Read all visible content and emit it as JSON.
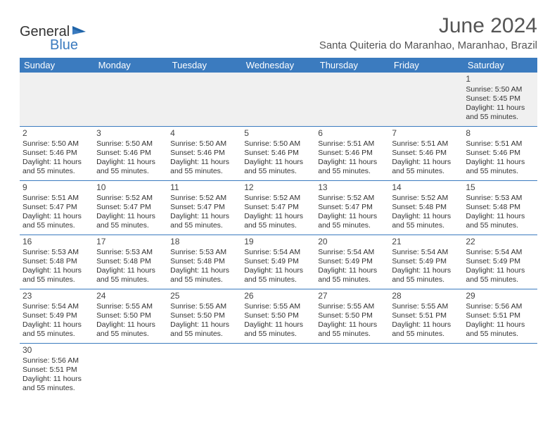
{
  "logo": {
    "text1": "General",
    "text2": "Blue"
  },
  "title": "June 2024",
  "location": "Santa Quiteria do Maranhao, Maranhao, Brazil",
  "dayHeaders": [
    "Sunday",
    "Monday",
    "Tuesday",
    "Wednesday",
    "Thursday",
    "Friday",
    "Saturday"
  ],
  "colors": {
    "header_bg": "#3b7bbf",
    "header_fg": "#ffffff",
    "border": "#3b7bbf",
    "firstrow_bg": "#f0f0f0",
    "text": "#333333",
    "title": "#555555"
  },
  "weeks": [
    [
      null,
      null,
      null,
      null,
      null,
      null,
      {
        "n": "1",
        "sr": "Sunrise: 5:50 AM",
        "ss": "Sunset: 5:45 PM",
        "d1": "Daylight: 11 hours",
        "d2": "and 55 minutes."
      }
    ],
    [
      {
        "n": "2",
        "sr": "Sunrise: 5:50 AM",
        "ss": "Sunset: 5:46 PM",
        "d1": "Daylight: 11 hours",
        "d2": "and 55 minutes."
      },
      {
        "n": "3",
        "sr": "Sunrise: 5:50 AM",
        "ss": "Sunset: 5:46 PM",
        "d1": "Daylight: 11 hours",
        "d2": "and 55 minutes."
      },
      {
        "n": "4",
        "sr": "Sunrise: 5:50 AM",
        "ss": "Sunset: 5:46 PM",
        "d1": "Daylight: 11 hours",
        "d2": "and 55 minutes."
      },
      {
        "n": "5",
        "sr": "Sunrise: 5:50 AM",
        "ss": "Sunset: 5:46 PM",
        "d1": "Daylight: 11 hours",
        "d2": "and 55 minutes."
      },
      {
        "n": "6",
        "sr": "Sunrise: 5:51 AM",
        "ss": "Sunset: 5:46 PM",
        "d1": "Daylight: 11 hours",
        "d2": "and 55 minutes."
      },
      {
        "n": "7",
        "sr": "Sunrise: 5:51 AM",
        "ss": "Sunset: 5:46 PM",
        "d1": "Daylight: 11 hours",
        "d2": "and 55 minutes."
      },
      {
        "n": "8",
        "sr": "Sunrise: 5:51 AM",
        "ss": "Sunset: 5:46 PM",
        "d1": "Daylight: 11 hours",
        "d2": "and 55 minutes."
      }
    ],
    [
      {
        "n": "9",
        "sr": "Sunrise: 5:51 AM",
        "ss": "Sunset: 5:47 PM",
        "d1": "Daylight: 11 hours",
        "d2": "and 55 minutes."
      },
      {
        "n": "10",
        "sr": "Sunrise: 5:52 AM",
        "ss": "Sunset: 5:47 PM",
        "d1": "Daylight: 11 hours",
        "d2": "and 55 minutes."
      },
      {
        "n": "11",
        "sr": "Sunrise: 5:52 AM",
        "ss": "Sunset: 5:47 PM",
        "d1": "Daylight: 11 hours",
        "d2": "and 55 minutes."
      },
      {
        "n": "12",
        "sr": "Sunrise: 5:52 AM",
        "ss": "Sunset: 5:47 PM",
        "d1": "Daylight: 11 hours",
        "d2": "and 55 minutes."
      },
      {
        "n": "13",
        "sr": "Sunrise: 5:52 AM",
        "ss": "Sunset: 5:47 PM",
        "d1": "Daylight: 11 hours",
        "d2": "and 55 minutes."
      },
      {
        "n": "14",
        "sr": "Sunrise: 5:52 AM",
        "ss": "Sunset: 5:48 PM",
        "d1": "Daylight: 11 hours",
        "d2": "and 55 minutes."
      },
      {
        "n": "15",
        "sr": "Sunrise: 5:53 AM",
        "ss": "Sunset: 5:48 PM",
        "d1": "Daylight: 11 hours",
        "d2": "and 55 minutes."
      }
    ],
    [
      {
        "n": "16",
        "sr": "Sunrise: 5:53 AM",
        "ss": "Sunset: 5:48 PM",
        "d1": "Daylight: 11 hours",
        "d2": "and 55 minutes."
      },
      {
        "n": "17",
        "sr": "Sunrise: 5:53 AM",
        "ss": "Sunset: 5:48 PM",
        "d1": "Daylight: 11 hours",
        "d2": "and 55 minutes."
      },
      {
        "n": "18",
        "sr": "Sunrise: 5:53 AM",
        "ss": "Sunset: 5:48 PM",
        "d1": "Daylight: 11 hours",
        "d2": "and 55 minutes."
      },
      {
        "n": "19",
        "sr": "Sunrise: 5:54 AM",
        "ss": "Sunset: 5:49 PM",
        "d1": "Daylight: 11 hours",
        "d2": "and 55 minutes."
      },
      {
        "n": "20",
        "sr": "Sunrise: 5:54 AM",
        "ss": "Sunset: 5:49 PM",
        "d1": "Daylight: 11 hours",
        "d2": "and 55 minutes."
      },
      {
        "n": "21",
        "sr": "Sunrise: 5:54 AM",
        "ss": "Sunset: 5:49 PM",
        "d1": "Daylight: 11 hours",
        "d2": "and 55 minutes."
      },
      {
        "n": "22",
        "sr": "Sunrise: 5:54 AM",
        "ss": "Sunset: 5:49 PM",
        "d1": "Daylight: 11 hours",
        "d2": "and 55 minutes."
      }
    ],
    [
      {
        "n": "23",
        "sr": "Sunrise: 5:54 AM",
        "ss": "Sunset: 5:49 PM",
        "d1": "Daylight: 11 hours",
        "d2": "and 55 minutes."
      },
      {
        "n": "24",
        "sr": "Sunrise: 5:55 AM",
        "ss": "Sunset: 5:50 PM",
        "d1": "Daylight: 11 hours",
        "d2": "and 55 minutes."
      },
      {
        "n": "25",
        "sr": "Sunrise: 5:55 AM",
        "ss": "Sunset: 5:50 PM",
        "d1": "Daylight: 11 hours",
        "d2": "and 55 minutes."
      },
      {
        "n": "26",
        "sr": "Sunrise: 5:55 AM",
        "ss": "Sunset: 5:50 PM",
        "d1": "Daylight: 11 hours",
        "d2": "and 55 minutes."
      },
      {
        "n": "27",
        "sr": "Sunrise: 5:55 AM",
        "ss": "Sunset: 5:50 PM",
        "d1": "Daylight: 11 hours",
        "d2": "and 55 minutes."
      },
      {
        "n": "28",
        "sr": "Sunrise: 5:55 AM",
        "ss": "Sunset: 5:51 PM",
        "d1": "Daylight: 11 hours",
        "d2": "and 55 minutes."
      },
      {
        "n": "29",
        "sr": "Sunrise: 5:56 AM",
        "ss": "Sunset: 5:51 PM",
        "d1": "Daylight: 11 hours",
        "d2": "and 55 minutes."
      }
    ],
    [
      {
        "n": "30",
        "sr": "Sunrise: 5:56 AM",
        "ss": "Sunset: 5:51 PM",
        "d1": "Daylight: 11 hours",
        "d2": "and 55 minutes."
      },
      null,
      null,
      null,
      null,
      null,
      null
    ]
  ]
}
